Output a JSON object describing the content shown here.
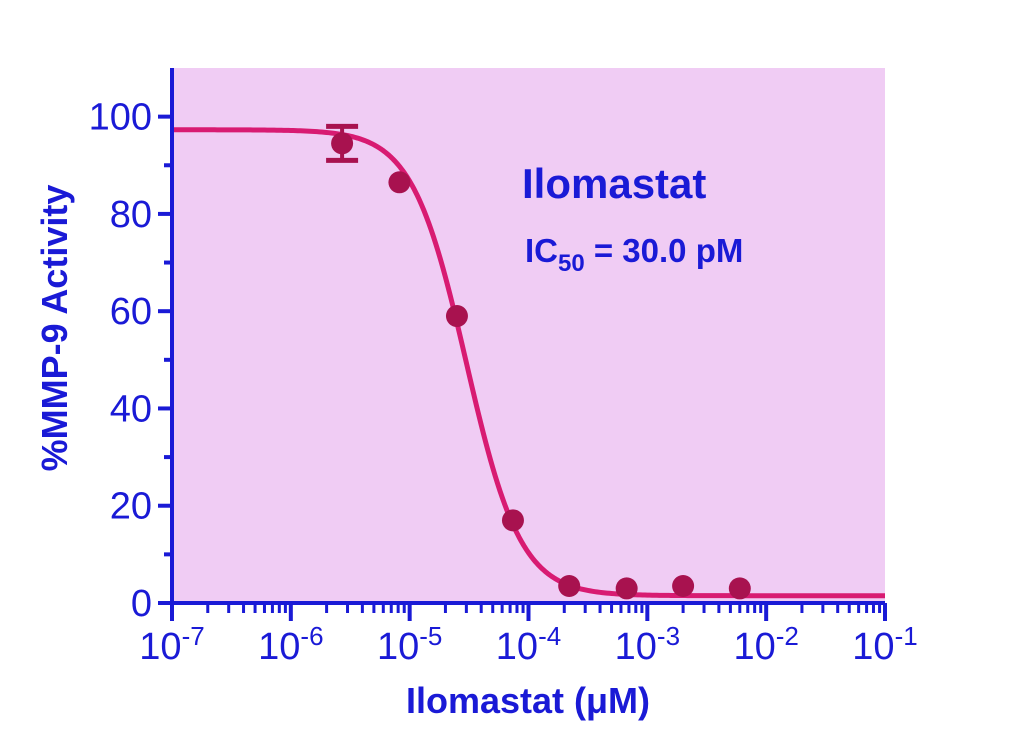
{
  "chart_data": {
    "type": "scatter",
    "x_scale": "log",
    "xlabel": "Ilomastat (μM)",
    "ylabel": "%MMP-9 Activity",
    "xlim": [
      1e-07,
      0.1
    ],
    "ylim": [
      0,
      110
    ],
    "x_ticks": [
      {
        "base": "10",
        "exp": "-7",
        "value": 1e-07
      },
      {
        "base": "10",
        "exp": "-6",
        "value": 1e-06
      },
      {
        "base": "10",
        "exp": "-5",
        "value": 1e-05
      },
      {
        "base": "10",
        "exp": "-4",
        "value": 0.0001
      },
      {
        "base": "10",
        "exp": "-3",
        "value": 0.001
      },
      {
        "base": "10",
        "exp": "-2",
        "value": 0.01
      },
      {
        "base": "10",
        "exp": "-1",
        "value": 0.1
      }
    ],
    "y_ticks": [
      "0",
      "20",
      "40",
      "60",
      "80",
      "100"
    ],
    "points": [
      {
        "x": 2.7e-06,
        "y": 94.5,
        "err": 3.5
      },
      {
        "x": 8.2e-06,
        "y": 86.5,
        "err": 0
      },
      {
        "x": 2.5e-05,
        "y": 59.0,
        "err": 0
      },
      {
        "x": 7.4e-05,
        "y": 17.0,
        "err": 0
      },
      {
        "x": 0.00022,
        "y": 3.5,
        "err": 0
      },
      {
        "x": 0.00067,
        "y": 3.0,
        "err": 0
      },
      {
        "x": 0.002,
        "y": 3.5,
        "err": 0
      },
      {
        "x": 0.006,
        "y": 3.0,
        "err": 0
      }
    ],
    "fit": {
      "top": 97.3,
      "bottom": 1.5,
      "ic50": 3e-05,
      "hill": 1.9
    },
    "annotations": {
      "compound": "Ilomastat",
      "ic50_main": "IC",
      "ic50_sub": "50",
      "ic50_value": " = 30.0 pM"
    },
    "colors": {
      "background": "#f0ccf4",
      "axis": "#1a1ad6",
      "curve": "#d81b72",
      "points": "#a8124f",
      "text": "#1a1ad6"
    },
    "grid": false
  }
}
